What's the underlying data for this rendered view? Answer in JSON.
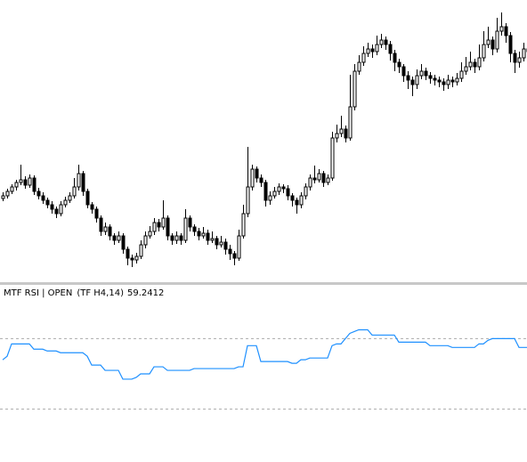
{
  "chart_data": [
    {
      "type": "candlestick",
      "ylim": [
        0,
        320
      ],
      "up_color": "#ffffff",
      "down_color": "#000000",
      "candles": [
        [
          97,
          104,
          94,
          100
        ],
        [
          100,
          108,
          97,
          105
        ],
        [
          105,
          113,
          102,
          110
        ],
        [
          110,
          118,
          106,
          115
        ],
        [
          115,
          135,
          112,
          118
        ],
        [
          118,
          122,
          108,
          112
        ],
        [
          112,
          124,
          109,
          120
        ],
        [
          120,
          123,
          101,
          105
        ],
        [
          105,
          109,
          96,
          100
        ],
        [
          100,
          104,
          91,
          95
        ],
        [
          95,
          98,
          86,
          90
        ],
        [
          90,
          94,
          80,
          85
        ],
        [
          85,
          88,
          75,
          80
        ],
        [
          80,
          94,
          77,
          90
        ],
        [
          90,
          99,
          87,
          95
        ],
        [
          95,
          104,
          92,
          100
        ],
        [
          100,
          120,
          97,
          110
        ],
        [
          110,
          135,
          106,
          125
        ],
        [
          125,
          128,
          100,
          105
        ],
        [
          105,
          108,
          86,
          90
        ],
        [
          90,
          93,
          80,
          85
        ],
        [
          85,
          88,
          70,
          75
        ],
        [
          75,
          78,
          55,
          60
        ],
        [
          60,
          70,
          56,
          65
        ],
        [
          65,
          68,
          50,
          55
        ],
        [
          55,
          58,
          45,
          50
        ],
        [
          50,
          60,
          47,
          55
        ],
        [
          55,
          58,
          35,
          40
        ],
        [
          40,
          43,
          22,
          30
        ],
        [
          30,
          34,
          20,
          28
        ],
        [
          28,
          36,
          24,
          32
        ],
        [
          32,
          50,
          29,
          45
        ],
        [
          45,
          60,
          41,
          55
        ],
        [
          55,
          66,
          52,
          60
        ],
        [
          60,
          75,
          56,
          70
        ],
        [
          70,
          74,
          60,
          65
        ],
        [
          65,
          95,
          62,
          75
        ],
        [
          75,
          78,
          50,
          55
        ],
        [
          55,
          58,
          45,
          50
        ],
        [
          50,
          60,
          46,
          55
        ],
        [
          55,
          58,
          45,
          50
        ],
        [
          50,
          85,
          47,
          75
        ],
        [
          75,
          78,
          60,
          65
        ],
        [
          65,
          68,
          55,
          60
        ],
        [
          60,
          64,
          50,
          55
        ],
        [
          55,
          65,
          52,
          58
        ],
        [
          58,
          62,
          45,
          50
        ],
        [
          50,
          60,
          47,
          52
        ],
        [
          52,
          55,
          40,
          45
        ],
        [
          45,
          55,
          42,
          48
        ],
        [
          48,
          52,
          34,
          40
        ],
        [
          40,
          45,
          28,
          35
        ],
        [
          35,
          38,
          22,
          30
        ],
        [
          30,
          62,
          27,
          55
        ],
        [
          55,
          90,
          52,
          80
        ],
        [
          80,
          155,
          76,
          110
        ],
        [
          110,
          135,
          106,
          130
        ],
        [
          130,
          133,
          115,
          120
        ],
        [
          120,
          124,
          110,
          115
        ],
        [
          115,
          118,
          88,
          95
        ],
        [
          95,
          105,
          90,
          100
        ],
        [
          100,
          110,
          97,
          105
        ],
        [
          105,
          114,
          101,
          110
        ],
        [
          110,
          113,
          103,
          108
        ],
        [
          108,
          112,
          95,
          100
        ],
        [
          100,
          103,
          88,
          95
        ],
        [
          95,
          98,
          80,
          90
        ],
        [
          90,
          104,
          86,
          100
        ],
        [
          100,
          114,
          96,
          110
        ],
        [
          110,
          124,
          106,
          120
        ],
        [
          120,
          134,
          114,
          118
        ],
        [
          118,
          130,
          115,
          125
        ],
        [
          125,
          128,
          110,
          115
        ],
        [
          115,
          124,
          112,
          120
        ],
        [
          120,
          172,
          117,
          165
        ],
        [
          165,
          180,
          160,
          170
        ],
        [
          170,
          190,
          166,
          175
        ],
        [
          175,
          179,
          160,
          165
        ],
        [
          165,
          236,
          162,
          200
        ],
        [
          200,
          248,
          196,
          240
        ],
        [
          240,
          258,
          236,
          250
        ],
        [
          250,
          268,
          246,
          260
        ],
        [
          260,
          272,
          256,
          265
        ],
        [
          265,
          270,
          255,
          262
        ],
        [
          262,
          280,
          258,
          270
        ],
        [
          270,
          282,
          266,
          275
        ],
        [
          275,
          279,
          264,
          270
        ],
        [
          270,
          274,
          252,
          260
        ],
        [
          260,
          264,
          240,
          250
        ],
        [
          250,
          254,
          238,
          245
        ],
        [
          245,
          248,
          228,
          235
        ],
        [
          235,
          240,
          220,
          230
        ],
        [
          230,
          234,
          212,
          225
        ],
        [
          225,
          242,
          220,
          235
        ],
        [
          235,
          248,
          231,
          240
        ],
        [
          240,
          244,
          230,
          235
        ],
        [
          235,
          239,
          226,
          232
        ],
        [
          232,
          236,
          224,
          230
        ],
        [
          230,
          234,
          222,
          228
        ],
        [
          228,
          232,
          218,
          225
        ],
        [
          225,
          236,
          220,
          230
        ],
        [
          230,
          234,
          222,
          228
        ],
        [
          228,
          238,
          224,
          232
        ],
        [
          232,
          250,
          228,
          240
        ],
        [
          240,
          256,
          236,
          245
        ],
        [
          245,
          262,
          241,
          250
        ],
        [
          250,
          254,
          238,
          245
        ],
        [
          245,
          270,
          241,
          255
        ],
        [
          255,
          285,
          251,
          270
        ],
        [
          270,
          290,
          266,
          275
        ],
        [
          275,
          279,
          258,
          265
        ],
        [
          265,
          300,
          261,
          285
        ],
        [
          285,
          306,
          280,
          290
        ],
        [
          290,
          294,
          272,
          280
        ],
        [
          280,
          284,
          250,
          260
        ],
        [
          260,
          264,
          238,
          250
        ],
        [
          250,
          262,
          244,
          255
        ],
        [
          255,
          272,
          251,
          265
        ],
        [
          265,
          269,
          258,
          262
        ]
      ]
    },
    {
      "type": "line",
      "title": "MTF RSI | OPEN",
      "params": "(TF H4,14)",
      "current": 59.2412,
      "ylim": [
        0,
        100
      ],
      "levels": [
        70,
        30
      ],
      "color": "#1e90ff",
      "values": [
        58,
        60,
        67,
        67,
        67,
        67,
        67,
        64,
        64,
        64,
        63,
        63,
        63,
        62,
        62,
        62,
        62,
        62,
        62,
        60,
        55,
        55,
        55,
        52,
        52,
        52,
        52,
        47,
        47,
        47,
        48,
        50,
        50,
        50,
        54,
        54,
        54,
        52,
        52,
        52,
        52,
        52,
        52,
        53,
        53,
        53,
        53,
        53,
        53,
        53,
        53,
        53,
        53,
        54,
        54,
        66,
        66,
        66,
        57,
        57,
        57,
        57,
        57,
        57,
        57,
        56,
        56,
        58,
        58,
        59,
        59,
        59,
        59,
        59,
        66,
        67,
        67,
        70,
        73,
        74,
        75,
        75,
        75,
        72,
        72,
        72,
        72,
        72,
        72,
        68,
        68,
        68,
        68,
        68,
        68,
        68,
        66,
        66,
        66,
        66,
        66,
        65,
        65,
        65,
        65,
        65,
        65,
        67,
        67,
        69,
        70,
        70,
        70,
        70,
        70,
        70,
        65,
        65,
        65
      ]
    }
  ]
}
